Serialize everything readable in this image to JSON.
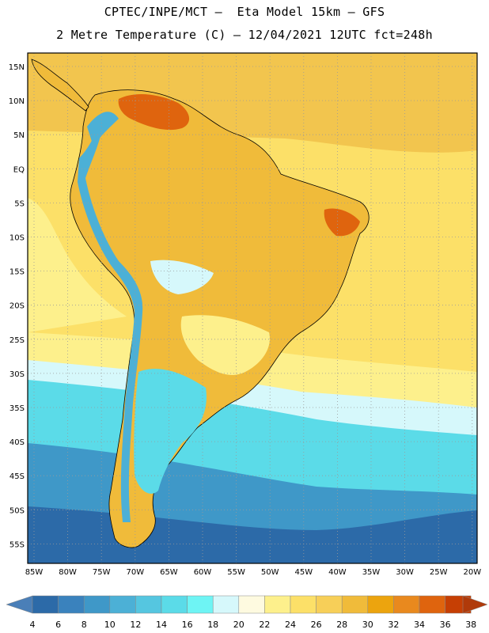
{
  "header": {
    "title_line1": "CPTEC/INPE/MCT –  Eta Model 15km – GFS",
    "title_line2": "2 Metre Temperature (C) – 12/04/2021 12UTC fct=248h"
  },
  "map": {
    "lon_labels": [
      "85W",
      "80W",
      "75W",
      "70W",
      "65W",
      "60W",
      "55W",
      "50W",
      "45W",
      "40W",
      "35W",
      "30W",
      "25W",
      "20W"
    ],
    "lat_labels": [
      "15N",
      "10N",
      "5N",
      "EQ",
      "5S",
      "10S",
      "15S",
      "20S",
      "25S",
      "30S",
      "35S",
      "40S",
      "45S",
      "50S",
      "55S"
    ]
  },
  "colorbar": {
    "ticks": [
      "4",
      "6",
      "8",
      "10",
      "12",
      "14",
      "16",
      "18",
      "20",
      "22",
      "24",
      "26",
      "28",
      "30",
      "32",
      "34",
      "36",
      "38"
    ],
    "colors": [
      "#2c6aa8",
      "#3a82bd",
      "#3f98c8",
      "#4cb0d6",
      "#55c6e0",
      "#5bdbe8",
      "#6ef4f4",
      "#d6f8fb",
      "#fefae0",
      "#fdf08c",
      "#fce068",
      "#f7cf58",
      "#f0bb3a",
      "#eca40e",
      "#e9891e",
      "#df640e",
      "#c63f04"
    ],
    "low_arrow_color": "#4a7fb8",
    "high_arrow_color": "#b03a0a"
  },
  "palette": {
    "ocean_hot": "#f2c54e",
    "ocean_warm": "#fce068",
    "ocean_mild": "#fdf08c",
    "ocean_cool": "#d6f8fb",
    "ocean_cold1": "#5bdbe8",
    "ocean_cold2": "#3f98c8",
    "ocean_cold3": "#2c6aa8",
    "land_main": "#f0bb3a",
    "land_hot": "#df640e",
    "andes": "#4cb0d6"
  }
}
